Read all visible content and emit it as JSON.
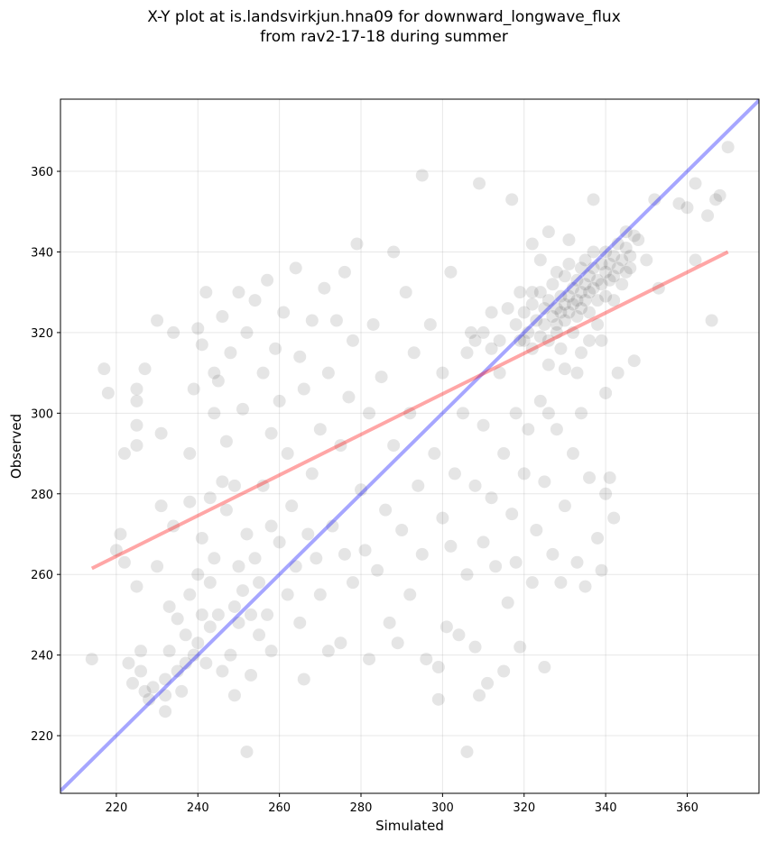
{
  "chart_data": {
    "type": "scatter",
    "title_line1": "X-Y plot at is.landsvirkjun.hna09 for downward_longwave_flux",
    "title_line2": "from rav2-17-18 during summer",
    "xlabel": "Simulated",
    "ylabel": "Observed",
    "xlim": [
      206.3,
      377.6
    ],
    "ylim": [
      205.7,
      377.9
    ],
    "xticks": [
      220,
      240,
      260,
      280,
      300,
      320,
      340,
      360
    ],
    "yticks": [
      220,
      240,
      260,
      280,
      300,
      320,
      340,
      360
    ],
    "grid": true,
    "point_color": "#000000",
    "point_alpha": 0.1,
    "fit_line": {
      "color": "#ff0000",
      "x": [
        214,
        370
      ],
      "y": [
        261.5,
        340
      ]
    },
    "identity_line": {
      "color": "#0000ff"
    },
    "points": [
      [
        214,
        239
      ],
      [
        217,
        311
      ],
      [
        218,
        305
      ],
      [
        220,
        266
      ],
      [
        221,
        270
      ],
      [
        222,
        263
      ],
      [
        222,
        290
      ],
      [
        223,
        238
      ],
      [
        224,
        233
      ],
      [
        225,
        306
      ],
      [
        225,
        303
      ],
      [
        225,
        297
      ],
      [
        225,
        292
      ],
      [
        225,
        257
      ],
      [
        226,
        241
      ],
      [
        226,
        236
      ],
      [
        227,
        231
      ],
      [
        227,
        311
      ],
      [
        228,
        229
      ],
      [
        229,
        232
      ],
      [
        230,
        323
      ],
      [
        230,
        262
      ],
      [
        231,
        295
      ],
      [
        231,
        277
      ],
      [
        232,
        226
      ],
      [
        232,
        230
      ],
      [
        232,
        234
      ],
      [
        233,
        241
      ],
      [
        233,
        252
      ],
      [
        234,
        272
      ],
      [
        234,
        320
      ],
      [
        235,
        249
      ],
      [
        235,
        236
      ],
      [
        236,
        231
      ],
      [
        237,
        238
      ],
      [
        237,
        245
      ],
      [
        238,
        255
      ],
      [
        238,
        278
      ],
      [
        238,
        290
      ],
      [
        239,
        240
      ],
      [
        239,
        306
      ],
      [
        240,
        260
      ],
      [
        240,
        243
      ],
      [
        240,
        321
      ],
      [
        241,
        317
      ],
      [
        241,
        250
      ],
      [
        241,
        269
      ],
      [
        242,
        238
      ],
      [
        242,
        330
      ],
      [
        243,
        279
      ],
      [
        243,
        258
      ],
      [
        243,
        247
      ],
      [
        244,
        310
      ],
      [
        244,
        300
      ],
      [
        244,
        264
      ],
      [
        245,
        250
      ],
      [
        245,
        308
      ],
      [
        246,
        236
      ],
      [
        246,
        324
      ],
      [
        246,
        283
      ],
      [
        247,
        276
      ],
      [
        247,
        293
      ],
      [
        248,
        240
      ],
      [
        248,
        315
      ],
      [
        249,
        282
      ],
      [
        249,
        252
      ],
      [
        249,
        230
      ],
      [
        250,
        330
      ],
      [
        250,
        248
      ],
      [
        250,
        262
      ],
      [
        251,
        301
      ],
      [
        251,
        256
      ],
      [
        252,
        216
      ],
      [
        252,
        320
      ],
      [
        252,
        270
      ],
      [
        253,
        235
      ],
      [
        253,
        250
      ],
      [
        254,
        328
      ],
      [
        254,
        264
      ],
      [
        255,
        245
      ],
      [
        255,
        258
      ],
      [
        256,
        310
      ],
      [
        256,
        282
      ],
      [
        257,
        333
      ],
      [
        257,
        250
      ],
      [
        258,
        241
      ],
      [
        258,
        272
      ],
      [
        258,
        295
      ],
      [
        259,
        316
      ],
      [
        260,
        303
      ],
      [
        260,
        268
      ],
      [
        261,
        325
      ],
      [
        262,
        290
      ],
      [
        262,
        255
      ],
      [
        263,
        277
      ],
      [
        264,
        336
      ],
      [
        264,
        262
      ],
      [
        265,
        314
      ],
      [
        265,
        248
      ],
      [
        266,
        234
      ],
      [
        266,
        306
      ],
      [
        267,
        270
      ],
      [
        268,
        285
      ],
      [
        268,
        323
      ],
      [
        269,
        264
      ],
      [
        270,
        296
      ],
      [
        270,
        255
      ],
      [
        271,
        331
      ],
      [
        272,
        241
      ],
      [
        272,
        310
      ],
      [
        273,
        272
      ],
      [
        274,
        323
      ],
      [
        275,
        243
      ],
      [
        275,
        292
      ],
      [
        276,
        335
      ],
      [
        276,
        265
      ],
      [
        277,
        304
      ],
      [
        278,
        258
      ],
      [
        278,
        318
      ],
      [
        279,
        342
      ],
      [
        280,
        281
      ],
      [
        281,
        266
      ],
      [
        282,
        239
      ],
      [
        282,
        300
      ],
      [
        283,
        322
      ],
      [
        284,
        261
      ],
      [
        285,
        309
      ],
      [
        286,
        276
      ],
      [
        287,
        248
      ],
      [
        288,
        340
      ],
      [
        288,
        292
      ],
      [
        289,
        243
      ],
      [
        290,
        271
      ],
      [
        291,
        330
      ],
      [
        292,
        300
      ],
      [
        292,
        255
      ],
      [
        293,
        315
      ],
      [
        294,
        282
      ],
      [
        295,
        359
      ],
      [
        295,
        265
      ],
      [
        296,
        239
      ],
      [
        297,
        322
      ],
      [
        298,
        290
      ],
      [
        299,
        229
      ],
      [
        299,
        237
      ],
      [
        300,
        274
      ],
      [
        300,
        310
      ],
      [
        301,
        247
      ],
      [
        302,
        267
      ],
      [
        302,
        335
      ],
      [
        303,
        285
      ],
      [
        304,
        245
      ],
      [
        305,
        300
      ],
      [
        306,
        216
      ],
      [
        306,
        260
      ],
      [
        307,
        320
      ],
      [
        308,
        282
      ],
      [
        308,
        242
      ],
      [
        309,
        357
      ],
      [
        309,
        230
      ],
      [
        310,
        297
      ],
      [
        310,
        268
      ],
      [
        311,
        233
      ],
      [
        312,
        325
      ],
      [
        312,
        279
      ],
      [
        313,
        262
      ],
      [
        314,
        310
      ],
      [
        315,
        236
      ],
      [
        315,
        290
      ],
      [
        316,
        253
      ],
      [
        317,
        353
      ],
      [
        317,
        275
      ],
      [
        318,
        300
      ],
      [
        318,
        263
      ],
      [
        319,
        242
      ],
      [
        320,
        285
      ],
      [
        320,
        318
      ],
      [
        321,
        296
      ],
      [
        322,
        258
      ],
      [
        322,
        330
      ],
      [
        323,
        271
      ],
      [
        324,
        303
      ],
      [
        325,
        237
      ],
      [
        325,
        283
      ],
      [
        326,
        345
      ],
      [
        327,
        265
      ],
      [
        328,
        296
      ],
      [
        328,
        320
      ],
      [
        329,
        258
      ],
      [
        330,
        277
      ],
      [
        330,
        311
      ],
      [
        331,
        343
      ],
      [
        332,
        290
      ],
      [
        333,
        263
      ],
      [
        334,
        300
      ],
      [
        335,
        257
      ],
      [
        336,
        284
      ],
      [
        337,
        353
      ],
      [
        338,
        269
      ],
      [
        339,
        261
      ],
      [
        340,
        305
      ],
      [
        340,
        280
      ],
      [
        341,
        284
      ],
      [
        342,
        274
      ],
      [
        343,
        310
      ],
      [
        345,
        345
      ],
      [
        346,
        336
      ],
      [
        347,
        313
      ],
      [
        348,
        343
      ],
      [
        350,
        338
      ],
      [
        352,
        353
      ],
      [
        353,
        331
      ],
      [
        358,
        352
      ],
      [
        360,
        351
      ],
      [
        362,
        338
      ],
      [
        362,
        357
      ],
      [
        365,
        349
      ],
      [
        366,
        323
      ],
      [
        367,
        353
      ],
      [
        368,
        354
      ],
      [
        370,
        366
      ],
      [
        318,
        322
      ],
      [
        319,
        318
      ],
      [
        320,
        325
      ],
      [
        321,
        320
      ],
      [
        322,
        327
      ],
      [
        322,
        316
      ],
      [
        323,
        323
      ],
      [
        324,
        330
      ],
      [
        324,
        319
      ],
      [
        325,
        326
      ],
      [
        325,
        322
      ],
      [
        326,
        328
      ],
      [
        326,
        318
      ],
      [
        327,
        324
      ],
      [
        327,
        332
      ],
      [
        328,
        326
      ],
      [
        328,
        322
      ],
      [
        329,
        329
      ],
      [
        329,
        325
      ],
      [
        330,
        327
      ],
      [
        330,
        323
      ],
      [
        330,
        334
      ],
      [
        331,
        329
      ],
      [
        331,
        325
      ],
      [
        332,
        331
      ],
      [
        332,
        327
      ],
      [
        332,
        320
      ],
      [
        333,
        333
      ],
      [
        333,
        328
      ],
      [
        333,
        324
      ],
      [
        334,
        330
      ],
      [
        334,
        336
      ],
      [
        334,
        326
      ],
      [
        335,
        332
      ],
      [
        335,
        328
      ],
      [
        335,
        338
      ],
      [
        336,
        334
      ],
      [
        336,
        330
      ],
      [
        336,
        325
      ],
      [
        337,
        336
      ],
      [
        337,
        331
      ],
      [
        337,
        340
      ],
      [
        338,
        333
      ],
      [
        338,
        328
      ],
      [
        339,
        337
      ],
      [
        339,
        332
      ],
      [
        340,
        335
      ],
      [
        340,
        340
      ],
      [
        340,
        329
      ],
      [
        341,
        337
      ],
      [
        341,
        333
      ],
      [
        342,
        339
      ],
      [
        342,
        334
      ],
      [
        343,
        336
      ],
      [
        343,
        342
      ],
      [
        344,
        338
      ],
      [
        345,
        335
      ],
      [
        345,
        341
      ],
      [
        346,
        339
      ],
      [
        347,
        344
      ],
      [
        338,
        322
      ],
      [
        336,
        318
      ],
      [
        329,
        316
      ],
      [
        326,
        312
      ],
      [
        334,
        315
      ],
      [
        342,
        328
      ],
      [
        344,
        332
      ],
      [
        331,
        337
      ],
      [
        328,
        335
      ],
      [
        324,
        338
      ],
      [
        322,
        342
      ],
      [
        319,
        330
      ],
      [
        316,
        326
      ],
      [
        314,
        318
      ],
      [
        312,
        316
      ],
      [
        310,
        320
      ],
      [
        308,
        318
      ],
      [
        306,
        315
      ],
      [
        326,
        300
      ],
      [
        333,
        310
      ],
      [
        339,
        318
      ]
    ]
  }
}
